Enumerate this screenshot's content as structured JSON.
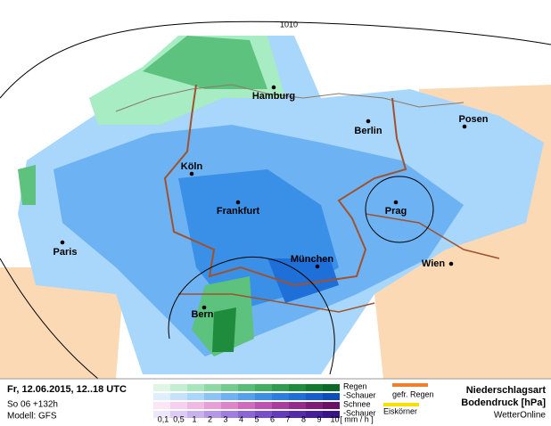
{
  "map": {
    "isobar_label": "1010",
    "cities": [
      "Hamburg",
      "Berlin",
      "Posen",
      "Köln",
      "Frankfurt",
      "Prag",
      "Paris",
      "München",
      "Wien",
      "Bern"
    ]
  },
  "footer": {
    "date": "Fr, 12.06.2015, 12..18 UTC",
    "run": "So 06 +132h",
    "model": "Modell: GFS",
    "legend": {
      "rain": "Regen",
      "rain_showers": "-Schauer",
      "snow": "Schnee",
      "snow_showers": "-Schauer",
      "scale": [
        "0,1",
        "0,5",
        "1",
        "2",
        "3",
        "4",
        "5",
        "6",
        "7",
        "8",
        "9",
        "10",
        "[ mm / h ]"
      ],
      "freezing_rain": "gefr. Regen",
      "ice_pellets": "Eiskörner"
    },
    "title": "Niederschlagsart",
    "subtitle": "Bodendruck [hPa]",
    "brand": "WetterOnline"
  }
}
